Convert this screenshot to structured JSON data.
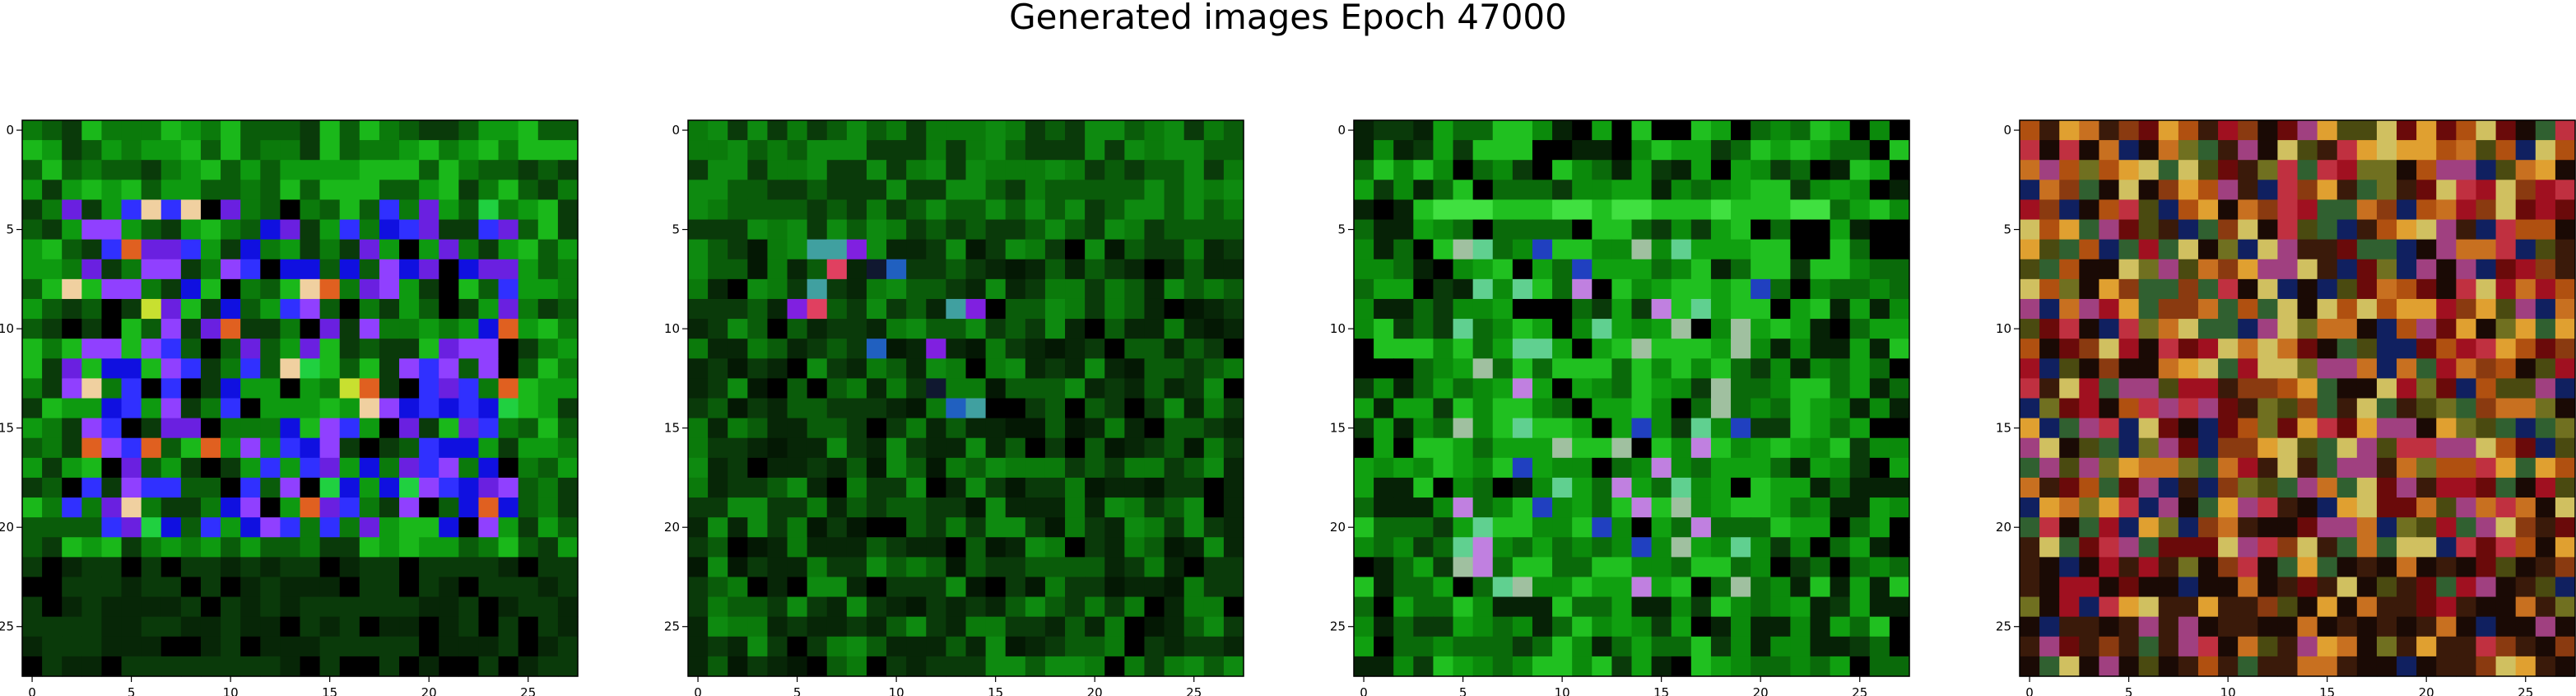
{
  "title": "Generated images Epoch 47000",
  "chart_data": [
    {
      "type": "heatmap",
      "name": "panel-1",
      "grid": 28,
      "xticks": [
        "0",
        "5",
        "10",
        "15",
        "20",
        "25"
      ],
      "yticks": [
        "0",
        "5",
        "10",
        "15",
        "20",
        "25"
      ],
      "palette": [
        "#0a5c0a",
        "#0b7a0b",
        "#0e9a10",
        "#1ab81a",
        "#0a3a0a",
        "#072607",
        "#1010e0",
        "#3030ff",
        "#6a20e0",
        "#9040ff",
        "#c8e030",
        "#e06020",
        "#f0d0a0",
        "#20d040",
        "#000000"
      ],
      "pattern": "blue-square",
      "seed": 11
    },
    {
      "type": "heatmap",
      "name": "panel-2",
      "grid": 28,
      "xticks": [
        "0",
        "5",
        "10",
        "15",
        "20",
        "25"
      ],
      "yticks": [
        "0",
        "5",
        "10",
        "15",
        "20",
        "25"
      ],
      "palette": [
        "#0a5c0a",
        "#0b7a0b",
        "#0e8a10",
        "#0a3a0a",
        "#072607",
        "#041804",
        "#000000",
        "#101830",
        "#e04060",
        "#d8a0d0",
        "#2060c0",
        "#8020e0",
        "#40a0a0"
      ],
      "pattern": "dark-center",
      "seed": 23
    },
    {
      "type": "heatmap",
      "name": "panel-3",
      "grid": 28,
      "xticks": [
        "0",
        "5",
        "10",
        "15",
        "20",
        "25"
      ],
      "yticks": [
        "0",
        "5",
        "10",
        "15",
        "20",
        "25"
      ],
      "palette": [
        "#0a6a0a",
        "#0b8a0b",
        "#10a010",
        "#20c020",
        "#40e040",
        "#0a3a0a",
        "#062206",
        "#000000",
        "#2040c0",
        "#c080e0",
        "#60d090",
        "#a0c0a0"
      ],
      "pattern": "band-dark",
      "seed": 37
    },
    {
      "type": "heatmap",
      "name": "panel-4",
      "grid": 28,
      "xticks": [
        "0",
        "5",
        "10",
        "15",
        "20",
        "25"
      ],
      "yticks": [
        "0",
        "5",
        "10",
        "15",
        "20",
        "25"
      ],
      "palette": [
        "#8a3a10",
        "#b05010",
        "#c87020",
        "#e0a030",
        "#6a0a0a",
        "#a01020",
        "#c03040",
        "#4a4a10",
        "#707020",
        "#3a1a0a",
        "#1a0a05",
        "#d0c060",
        "#a04080",
        "#306030",
        "#102060"
      ],
      "pattern": "noise-warm",
      "seed": 53
    }
  ]
}
